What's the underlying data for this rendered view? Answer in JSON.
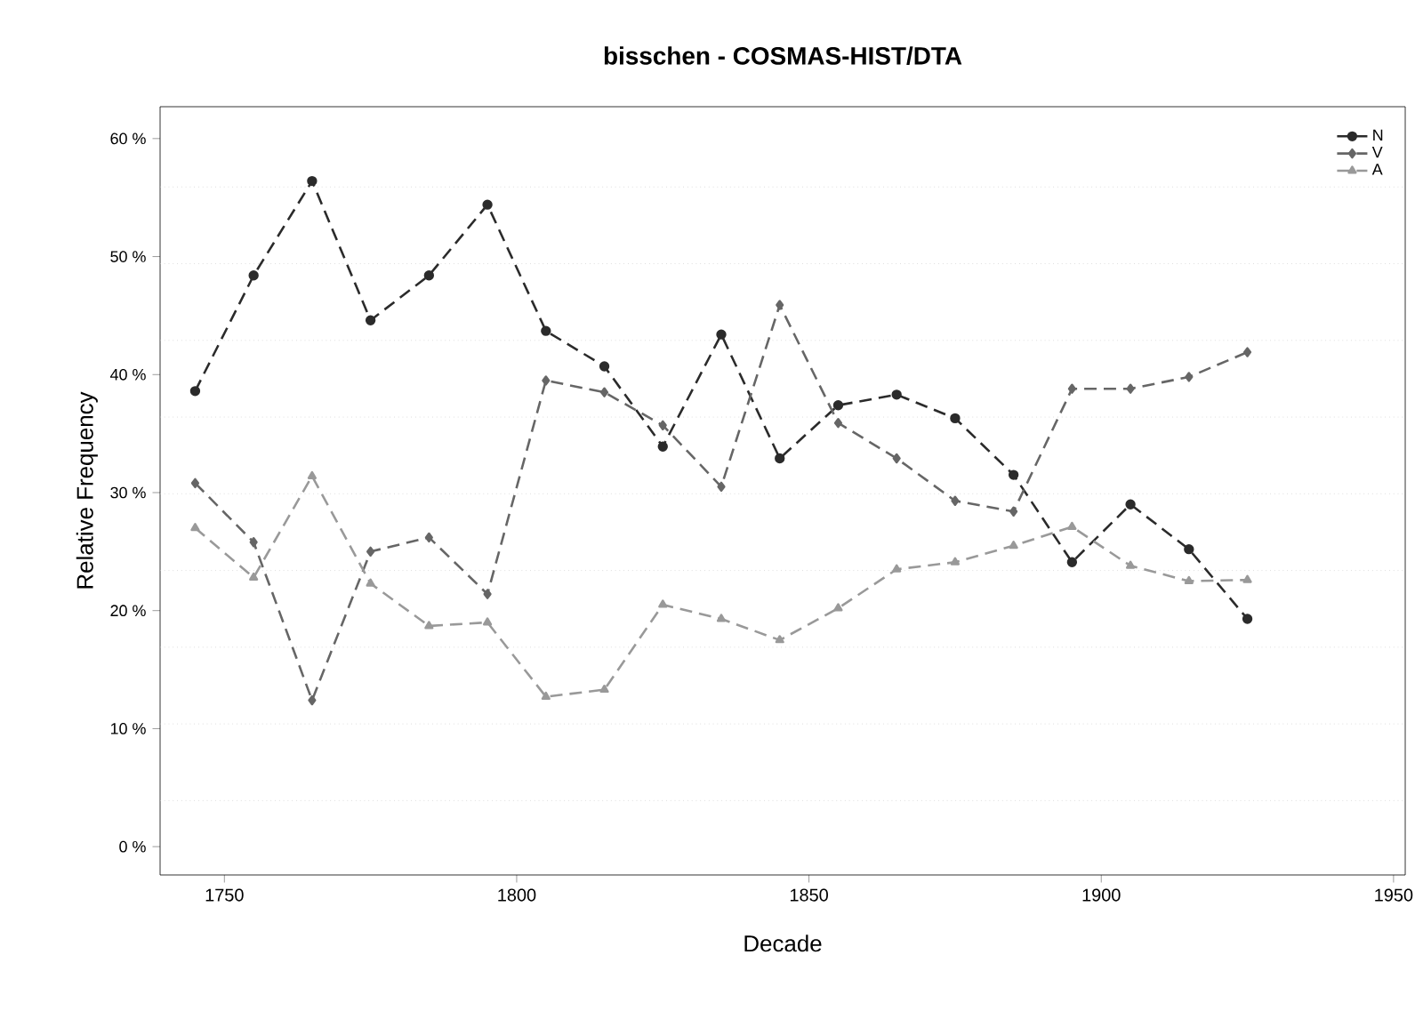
{
  "chart_data": {
    "type": "line",
    "title": "bisschen - COSMAS-HIST/DTA",
    "xlabel": "Decade",
    "ylabel": "Relative Frequency",
    "x": [
      1745,
      1755,
      1765,
      1775,
      1785,
      1795,
      1805,
      1815,
      1825,
      1835,
      1845,
      1855,
      1865,
      1875,
      1885,
      1895,
      1905,
      1915,
      1925
    ],
    "series": [
      {
        "name": "N",
        "color": "#2b2b2b",
        "marker": "circle",
        "values": [
          38.6,
          48.4,
          56.4,
          44.6,
          48.4,
          54.4,
          43.7,
          40.7,
          33.9,
          43.4,
          32.9,
          37.4,
          38.3,
          36.3,
          31.5,
          24.1,
          29.0,
          25.2,
          19.3
        ]
      },
      {
        "name": "V",
        "color": "#666666",
        "marker": "diamond",
        "values": [
          30.8,
          25.8,
          12.4,
          25.0,
          26.2,
          21.4,
          39.5,
          38.5,
          35.7,
          30.5,
          45.9,
          35.9,
          32.9,
          29.3,
          28.4,
          38.8,
          38.8,
          39.8,
          41.9
        ]
      },
      {
        "name": "A",
        "color": "#999999",
        "marker": "triangle",
        "values": [
          27.0,
          22.8,
          31.4,
          22.3,
          18.7,
          19.0,
          12.7,
          13.3,
          20.5,
          19.3,
          17.5,
          20.2,
          23.5,
          24.1,
          25.5,
          27.1,
          23.8,
          22.5,
          22.6
        ]
      }
    ],
    "line_style": "dashed",
    "xlim": [
      1739,
      1952
    ],
    "xticks": [
      1750,
      1800,
      1850,
      1900,
      1950
    ],
    "ylim": [
      -2.4,
      62.7
    ],
    "yticks": [
      {
        "value": 0,
        "label": "0 %"
      },
      {
        "value": 10,
        "label": "10 %"
      },
      {
        "value": 20,
        "label": "20 %"
      },
      {
        "value": 30,
        "label": "30 %"
      },
      {
        "value": 40,
        "label": "40 %"
      },
      {
        "value": 50,
        "label": "50 %"
      },
      {
        "value": 60,
        "label": "60 %"
      }
    ],
    "ref_lines": [
      {
        "axis": "y",
        "value": 3.9,
        "color": "#cccccc",
        "line_style": "dotted"
      },
      {
        "axis": "y",
        "value": 10.4,
        "color": "#cccccc",
        "line_style": "dotted"
      },
      {
        "axis": "y",
        "value": 16.9,
        "color": "#cccccc",
        "line_style": "dotted"
      },
      {
        "axis": "y",
        "value": 23.4,
        "color": "#cccccc",
        "line_style": "dotted"
      },
      {
        "axis": "y",
        "value": 29.9,
        "color": "#cccccc",
        "line_style": "dotted"
      },
      {
        "axis": "y",
        "value": 36.4,
        "color": "#cccccc",
        "line_style": "dotted"
      },
      {
        "axis": "y",
        "value": 42.9,
        "color": "#cccccc",
        "line_style": "dotted"
      },
      {
        "axis": "y",
        "value": 49.4,
        "color": "#cccccc",
        "line_style": "dotted"
      },
      {
        "axis": "y",
        "value": 55.9,
        "color": "#cccccc",
        "line_style": "dotted"
      }
    ],
    "legend": "top right"
  }
}
